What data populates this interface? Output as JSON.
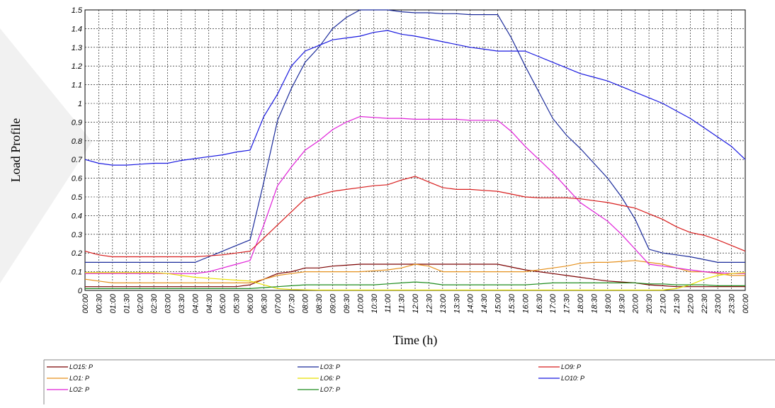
{
  "chart_data": {
    "type": "line",
    "xlabel": "Time (h)",
    "ylabel": "Load Profile",
    "ylim": [
      0,
      1.5
    ],
    "yticks": [
      "0",
      "0.1",
      "0.2",
      "0.3",
      "0.4",
      "0.5",
      "0.6",
      "0.7",
      "0.8",
      "0.9",
      "1",
      "1.1",
      "1.2",
      "1.3",
      "1.4",
      "1.5"
    ],
    "x": [
      "00:00",
      "00:30",
      "01:00",
      "01:30",
      "02:00",
      "02:30",
      "03:00",
      "03:30",
      "04:00",
      "04:30",
      "05:00",
      "05:30",
      "06:00",
      "06:30",
      "07:00",
      "07:30",
      "08:00",
      "08:30",
      "09:00",
      "09:30",
      "10:00",
      "10:30",
      "11:00",
      "11:30",
      "12:00",
      "12:30",
      "13:00",
      "13:30",
      "14:00",
      "14:30",
      "15:00",
      "15:30",
      "16:00",
      "16:30",
      "17:00",
      "17:30",
      "18:00",
      "18:30",
      "19:00",
      "19:30",
      "20:00",
      "20:30",
      "21:00",
      "21:30",
      "22:00",
      "22:30",
      "23:00",
      "23:30",
      "00:00"
    ],
    "grid": true,
    "legend_position": "bottom",
    "series": [
      {
        "name": "LO15: P",
        "color": "#7b0000",
        "values": [
          0.02,
          0.02,
          0.02,
          0.02,
          0.02,
          0.02,
          0.02,
          0.02,
          0.02,
          0.02,
          0.02,
          0.02,
          0.03,
          0.06,
          0.09,
          0.1,
          0.12,
          0.12,
          0.13,
          0.135,
          0.14,
          0.14,
          0.14,
          0.14,
          0.14,
          0.14,
          0.14,
          0.14,
          0.14,
          0.14,
          0.14,
          0.125,
          0.11,
          0.1,
          0.09,
          0.08,
          0.07,
          0.06,
          0.05,
          0.045,
          0.04,
          0.03,
          0.025,
          0.02,
          0.02,
          0.02,
          0.02,
          0.02,
          0.02
        ]
      },
      {
        "name": "LO1: P",
        "color": "#e6911e",
        "values": [
          0.06,
          0.05,
          0.04,
          0.04,
          0.04,
          0.04,
          0.04,
          0.04,
          0.04,
          0.04,
          0.04,
          0.04,
          0.04,
          0.06,
          0.08,
          0.09,
          0.1,
          0.1,
          0.1,
          0.1,
          0.1,
          0.105,
          0.11,
          0.12,
          0.14,
          0.13,
          0.1,
          0.1,
          0.1,
          0.1,
          0.1,
          0.1,
          0.1,
          0.11,
          0.12,
          0.13,
          0.145,
          0.15,
          0.15,
          0.155,
          0.16,
          0.15,
          0.14,
          0.12,
          0.1,
          0.1,
          0.09,
          0.08,
          0.08
        ]
      },
      {
        "name": "LO2: P",
        "color": "#e020d8",
        "values": [
          0.09,
          0.09,
          0.09,
          0.09,
          0.09,
          0.09,
          0.09,
          0.09,
          0.09,
          0.1,
          0.12,
          0.14,
          0.16,
          0.35,
          0.56,
          0.66,
          0.75,
          0.8,
          0.86,
          0.9,
          0.93,
          0.925,
          0.92,
          0.92,
          0.915,
          0.915,
          0.915,
          0.915,
          0.91,
          0.91,
          0.91,
          0.85,
          0.77,
          0.7,
          0.63,
          0.55,
          0.47,
          0.42,
          0.37,
          0.3,
          0.22,
          0.14,
          0.13,
          0.12,
          0.11,
          0.1,
          0.095,
          0.09,
          0.09
        ]
      },
      {
        "name": "LO3: P",
        "color": "#1a2a9a",
        "values": [
          0.15,
          0.15,
          0.15,
          0.15,
          0.15,
          0.15,
          0.15,
          0.15,
          0.15,
          0.18,
          0.21,
          0.24,
          0.27,
          0.58,
          0.91,
          1.08,
          1.22,
          1.3,
          1.4,
          1.46,
          1.5,
          1.5,
          1.5,
          1.49,
          1.485,
          1.485,
          1.48,
          1.48,
          1.475,
          1.475,
          1.475,
          1.35,
          1.2,
          1.06,
          0.92,
          0.83,
          0.76,
          0.68,
          0.6,
          0.5,
          0.38,
          0.22,
          0.2,
          0.19,
          0.18,
          0.165,
          0.15,
          0.15,
          0.15
        ]
      },
      {
        "name": "LO6: P",
        "color": "#e8e000",
        "values": [
          0.095,
          0.095,
          0.095,
          0.095,
          0.095,
          0.095,
          0.09,
          0.08,
          0.07,
          0.065,
          0.06,
          0.055,
          0.05,
          0.03,
          0.01,
          0.005,
          0.003,
          0.002,
          0.002,
          0.002,
          0.002,
          0.002,
          0.002,
          0.002,
          0.002,
          0.002,
          0.002,
          0.002,
          0.002,
          0.002,
          0.002,
          0.002,
          0.002,
          0.002,
          0.002,
          0.002,
          0.002,
          0.002,
          0.002,
          0.002,
          0.002,
          0.002,
          0.002,
          0.01,
          0.03,
          0.06,
          0.08,
          0.09,
          0.095
        ]
      },
      {
        "name": "LO7: P",
        "color": "#1e8c1e",
        "values": [
          0.01,
          0.01,
          0.01,
          0.01,
          0.01,
          0.01,
          0.01,
          0.01,
          0.01,
          0.01,
          0.01,
          0.01,
          0.01,
          0.015,
          0.02,
          0.025,
          0.03,
          0.03,
          0.03,
          0.03,
          0.03,
          0.03,
          0.035,
          0.04,
          0.045,
          0.04,
          0.03,
          0.03,
          0.03,
          0.03,
          0.03,
          0.03,
          0.03,
          0.035,
          0.04,
          0.04,
          0.04,
          0.04,
          0.04,
          0.04,
          0.04,
          0.035,
          0.035,
          0.03,
          0.03,
          0.03,
          0.025,
          0.025,
          0.025
        ]
      },
      {
        "name": "LO9: P",
        "color": "#d81e1e",
        "values": [
          0.21,
          0.19,
          0.18,
          0.18,
          0.18,
          0.18,
          0.18,
          0.18,
          0.18,
          0.185,
          0.19,
          0.2,
          0.21,
          0.28,
          0.35,
          0.42,
          0.49,
          0.51,
          0.53,
          0.54,
          0.55,
          0.56,
          0.565,
          0.59,
          0.61,
          0.58,
          0.55,
          0.54,
          0.54,
          0.535,
          0.53,
          0.515,
          0.5,
          0.495,
          0.495,
          0.495,
          0.49,
          0.48,
          0.47,
          0.455,
          0.44,
          0.41,
          0.38,
          0.34,
          0.31,
          0.295,
          0.27,
          0.24,
          0.21
        ]
      },
      {
        "name": "LO10: P",
        "color": "#1a1ae0",
        "values": [
          0.7,
          0.68,
          0.67,
          0.67,
          0.675,
          0.68,
          0.68,
          0.695,
          0.705,
          0.715,
          0.725,
          0.74,
          0.75,
          0.93,
          1.05,
          1.2,
          1.28,
          1.31,
          1.34,
          1.35,
          1.36,
          1.38,
          1.39,
          1.37,
          1.36,
          1.345,
          1.33,
          1.315,
          1.3,
          1.29,
          1.28,
          1.28,
          1.28,
          1.25,
          1.22,
          1.19,
          1.16,
          1.14,
          1.12,
          1.09,
          1.06,
          1.03,
          1.0,
          0.96,
          0.92,
          0.87,
          0.82,
          0.77,
          0.7
        ]
      }
    ]
  }
}
